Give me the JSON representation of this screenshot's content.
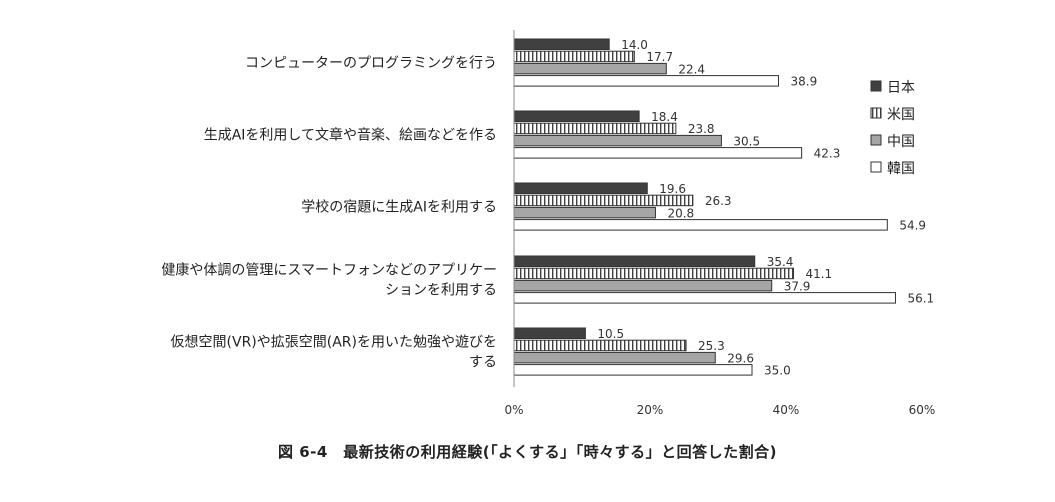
{
  "caption": "図 6-4　最新技術の利用経験(「よくする」「時々する」と回答した割合)",
  "chart_data": {
    "type": "bar",
    "orientation": "horizontal",
    "categories": [
      [
        "コンピューターのプログラミングを行う"
      ],
      [
        "生成AIを利用して文章や音楽、絵画などを作る"
      ],
      [
        "学校の宿題に生成AIを利用する"
      ],
      [
        "健康や体調の管理にスマートフォンなどのアプリケー",
        "ションを利用する"
      ],
      [
        "仮想空間(VR)や拡張空間(AR)を用いた勉強や遊びを",
        "する"
      ]
    ],
    "series": [
      {
        "name": "日本",
        "values": [
          14.0,
          18.4,
          19.6,
          35.4,
          10.5
        ],
        "pattern": "solid-dark",
        "color": "#404040"
      },
      {
        "name": "米国",
        "values": [
          17.7,
          23.8,
          26.3,
          41.1,
          25.3
        ],
        "pattern": "vertical-stripes",
        "color": "#404040"
      },
      {
        "name": "中国",
        "values": [
          22.4,
          30.5,
          20.8,
          37.9,
          29.6
        ],
        "pattern": "solid-gray",
        "color": "#a6a6a6"
      },
      {
        "name": "韓国",
        "values": [
          38.9,
          42.3,
          54.9,
          56.1,
          35.0
        ],
        "pattern": "white",
        "color": "#ffffff"
      }
    ],
    "xlim": [
      0,
      60
    ],
    "xticks": [
      "0%",
      "20%",
      "40%",
      "60%"
    ],
    "xtick_values": [
      0,
      20,
      40,
      60
    ],
    "legend_position": "right",
    "grid": false
  }
}
